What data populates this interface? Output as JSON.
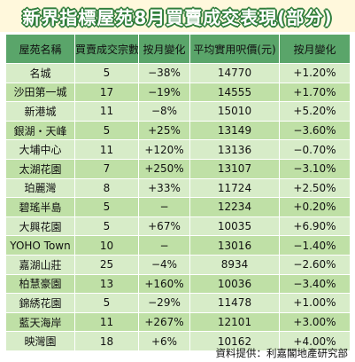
{
  "title": "新界指標屋苑8月買賣成交表現(部分)",
  "headers": [
    "屋苑名稱",
    "買賣成交宗數",
    "按月變化",
    "平均實用呎價(元)",
    "按月變化"
  ],
  "rows": [
    [
      "名城",
      "5",
      "−38%",
      "14770",
      "+1.20%"
    ],
    [
      "沙田第一城",
      "17",
      "−19%",
      "14555",
      "+1.70%"
    ],
    [
      "新港城",
      "11",
      "−8%",
      "15010",
      "+5.20%"
    ],
    [
      "銀湖・天峰",
      "5",
      "+25%",
      "13149",
      "−3.60%"
    ],
    [
      "大埔中心",
      "11",
      "+120%",
      "13136",
      "−0.70%"
    ],
    [
      "太湖花園",
      "7",
      "+250%",
      "13107",
      "−3.10%"
    ],
    [
      "珀麗灣",
      "8",
      "+33%",
      "11724",
      "+2.50%"
    ],
    [
      "碧瑤半島",
      "5",
      "−",
      "12234",
      "+0.20%"
    ],
    [
      "大興花園",
      "5",
      "+67%",
      "10035",
      "+6.90%"
    ],
    [
      "YOHO Town",
      "10",
      "−",
      "13016",
      "−1.40%"
    ],
    [
      "嘉湖山莊",
      "25",
      "−4%",
      "8934",
      "−2.60%"
    ],
    [
      "柏慧豪園",
      "13",
      "+160%",
      "10036",
      "−3.40%"
    ],
    [
      "錦綉花園",
      "5",
      "−29%",
      "11478",
      "+1.00%"
    ],
    [
      "藍天海岸",
      "11",
      "+267%",
      "12101",
      "+3.00%"
    ],
    [
      "映灣園",
      "18",
      "+6%",
      "10162",
      "+4.00%"
    ]
  ],
  "source": "資料提供：利嘉閣地產研究部",
  "colors": {
    "header_bg": "#5aa56a",
    "row_light": "#d7ecc8",
    "row_dark": "#bfe0a6",
    "title_outline": "#2f7d3a"
  }
}
